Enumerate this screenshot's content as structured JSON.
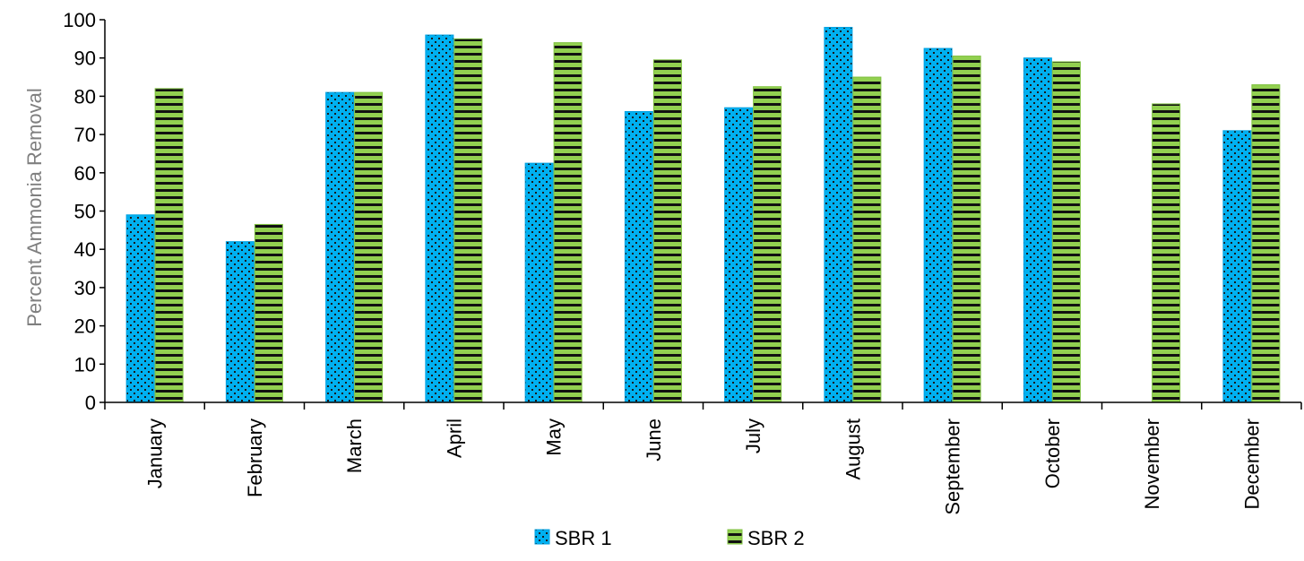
{
  "chart_data": {
    "type": "bar",
    "title": "",
    "xlabel": "",
    "ylabel": "Percent Ammonia Removal",
    "ylim": [
      0,
      100
    ],
    "yticks": [
      0,
      10,
      20,
      30,
      40,
      50,
      60,
      70,
      80,
      90,
      100
    ],
    "grid": false,
    "legend_position": "bottom",
    "categories": [
      "January",
      "February",
      "March",
      "April",
      "May",
      "June",
      "July",
      "August",
      "September",
      "October",
      "November",
      "December"
    ],
    "series": [
      {
        "name": "SBR 1",
        "color": "#00b0f0",
        "pattern": "dots",
        "values": [
          49,
          42,
          81,
          96,
          62.5,
          76,
          77,
          98,
          92.5,
          90,
          null,
          71
        ]
      },
      {
        "name": "SBR 2",
        "color": "#92d050",
        "pattern": "horizontal-dashes",
        "values": [
          82,
          46.5,
          81,
          95,
          94,
          89.5,
          82.5,
          85,
          90.5,
          89,
          78,
          83
        ]
      }
    ]
  }
}
